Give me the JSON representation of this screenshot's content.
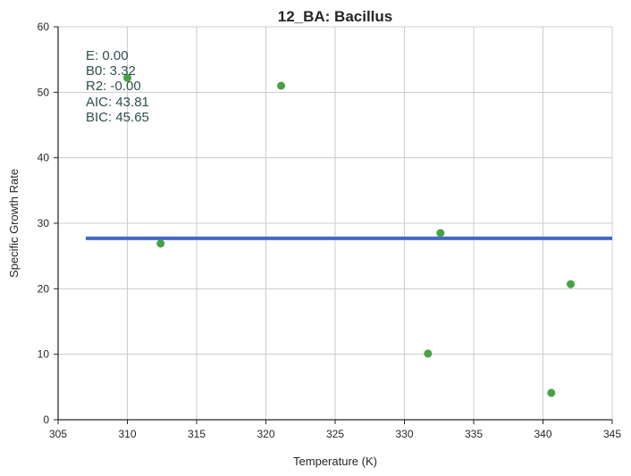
{
  "chart_data": {
    "type": "scatter",
    "title": "12_BA: Bacillus",
    "xlabel": "Temperature (K)",
    "ylabel": "Specific Growth Rate",
    "xlim": [
      305,
      345
    ],
    "ylim": [
      0,
      60
    ],
    "xticks": [
      305,
      310,
      315,
      320,
      325,
      330,
      335,
      340,
      345
    ],
    "yticks": [
      0,
      10,
      20,
      30,
      40,
      50,
      60
    ],
    "grid": true,
    "points": {
      "x": [
        310.0,
        312.4,
        321.1,
        331.7,
        332.6,
        340.6,
        342.0
      ],
      "y": [
        52.2,
        26.9,
        51.0,
        10.1,
        28.5,
        4.1,
        20.7
      ],
      "color": "#45a245"
    },
    "fit_line": {
      "x": [
        307.0,
        345.0
      ],
      "y": [
        27.7,
        27.7
      ],
      "color": "#4468c8"
    },
    "annotations": [
      "E:  0.00",
      "B0:  3.32",
      "R2:  -0.00",
      "AIC: 43.81",
      "BIC: 45.65"
    ]
  }
}
